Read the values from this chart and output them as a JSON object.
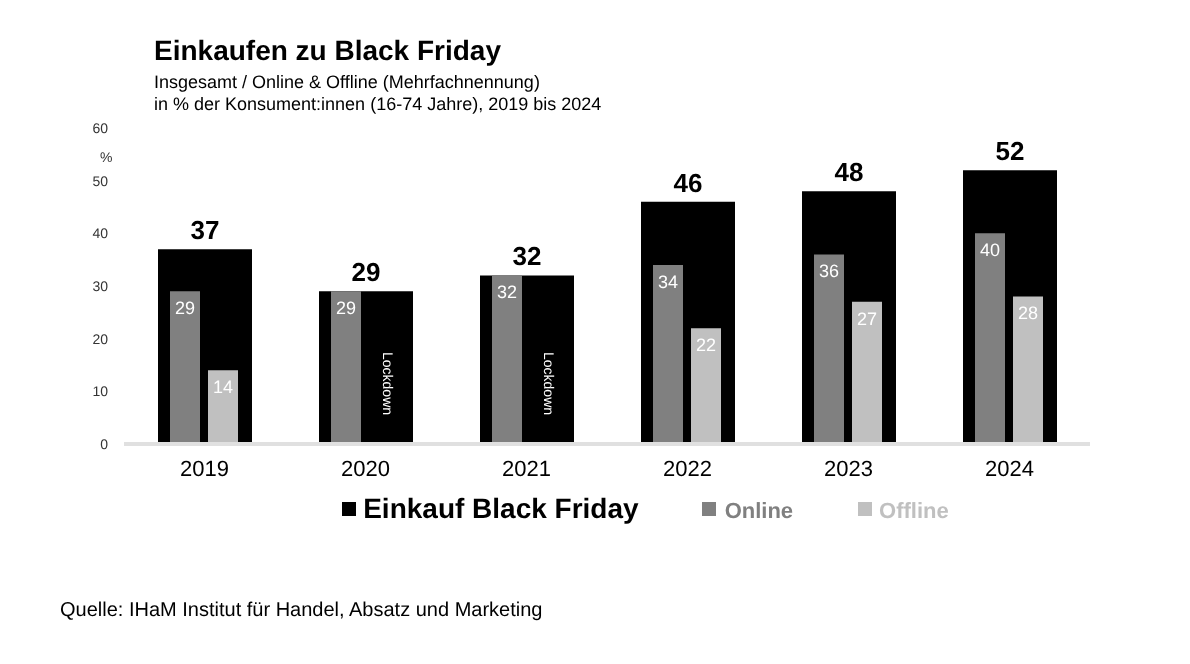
{
  "chart_data": {
    "type": "bar",
    "title": "Einkaufen zu Black Friday",
    "subtitle": "Insgesamt / Online & Offline (Mehrfachnennung)\nin % der Konsument:innen (16-74 Jahre), 2019 bis 2024",
    "ylabel": "%",
    "categories": [
      "2019",
      "2020",
      "2021",
      "2022",
      "2023",
      "2024"
    ],
    "series": [
      {
        "name": "Einkauf Black Friday",
        "color": "#000000",
        "values": [
          37,
          29,
          32,
          46,
          48,
          52
        ]
      },
      {
        "name": "Online",
        "color": "#808080",
        "values": [
          29,
          29,
          32,
          34,
          36,
          40
        ]
      },
      {
        "name": "Offline",
        "color": "#c0c0c0",
        "values": [
          14,
          null,
          null,
          22,
          27,
          28
        ]
      }
    ],
    "ylim": [
      0,
      60
    ],
    "yticks": [
      0,
      10,
      20,
      30,
      40,
      50,
      60
    ],
    "grid": false,
    "legend": "bottom",
    "data_labels": true,
    "annotations": [
      {
        "text": "Lockdown",
        "x": "2020"
      },
      {
        "text": "Lockdown",
        "x": "2021"
      },
      "Quelle: IHaM Institut für Handel, Absatz und Marketing"
    ]
  }
}
